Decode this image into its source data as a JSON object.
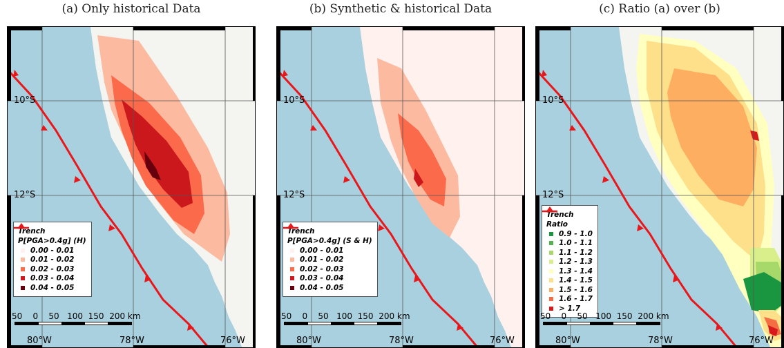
{
  "panels": [
    {
      "title": "(a) Only historical Data",
      "legend": {
        "trench": "Trench",
        "title": "P[PGA>0.4g] (H)",
        "classes": [
          {
            "label": "0.00 - 0.01",
            "color": "#fff1ee"
          },
          {
            "label": "0.01 - 0.02",
            "color": "#fcbba1"
          },
          {
            "label": "0.02 - 0.03",
            "color": "#fb6a4a"
          },
          {
            "label": "0.03 - 0.04",
            "color": "#cb181d"
          },
          {
            "label": "0.04 - 0.05",
            "color": "#67000d"
          }
        ]
      }
    },
    {
      "title": "(b) Synthetic & historical Data",
      "legend": {
        "trench": "Trench",
        "title": "P[PGA>0.4g] (S & H)",
        "classes": [
          {
            "label": "0.00 - 0.01",
            "color": "#fff1ee"
          },
          {
            "label": "0.01 - 0.02",
            "color": "#fcbba1"
          },
          {
            "label": "0.02 - 0.03",
            "color": "#fb6a4a"
          },
          {
            "label": "0.03 - 0.04",
            "color": "#cb181d"
          },
          {
            "label": "0.04 - 0.05",
            "color": "#67000d"
          }
        ]
      }
    },
    {
      "title": "(c) Ratio (a) over (b)",
      "legend": {
        "trench": "Trench",
        "title": "Ratio",
        "classes": [
          {
            "label": "0.9 - 1.0",
            "color": "#1a9641"
          },
          {
            "label": "1.0 - 1.1",
            "color": "#52b151"
          },
          {
            "label": "1.1 - 1.2",
            "color": "#a6d96a"
          },
          {
            "label": "1.2 - 1.3",
            "color": "#d9ef8b"
          },
          {
            "label": "1.3 - 1.4",
            "color": "#ffffbf"
          },
          {
            "label": "1.4 - 1.5",
            "color": "#fee08b"
          },
          {
            "label": "1.5 - 1.6",
            "color": "#fdae61"
          },
          {
            "label": "1.6 - 1.7",
            "color": "#f46d43"
          },
          {
            "label": "> 1.7",
            "color": "#d7191c"
          }
        ]
      }
    }
  ],
  "lat_labels": [
    "10°S",
    "12°S"
  ],
  "lon_labels": [
    "80°W",
    "78°W",
    "76°W"
  ],
  "scalebar": {
    "labels": "50    0    50   100  150  200 km"
  },
  "colors": {
    "ocean": "#a9d0de",
    "trench": "#e8171b",
    "land": "#f4f4f1"
  }
}
